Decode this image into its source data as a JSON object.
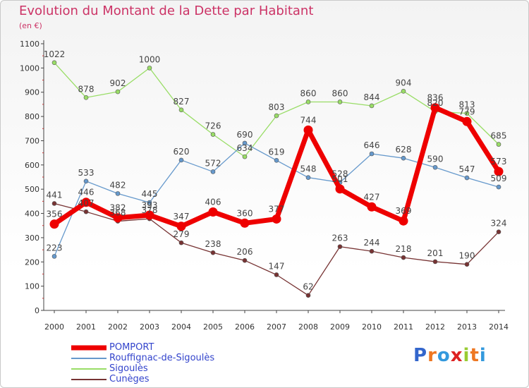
{
  "chart_data": {
    "type": "line",
    "title": "Evolution du Montant de la Dette par Habitant",
    "subtitle": "(en €)",
    "categories": [
      "2000",
      "2001",
      "2002",
      "2003",
      "2004",
      "2005",
      "2006",
      "2007",
      "2008",
      "2009",
      "2010",
      "2011",
      "2012",
      "2013",
      "2014"
    ],
    "ylim": [
      0,
      1100
    ],
    "yticks": [
      0,
      100,
      200,
      300,
      400,
      500,
      600,
      700,
      800,
      900,
      1000,
      1100
    ],
    "grid": false,
    "legend_position": "bottom-left",
    "series": [
      {
        "name": "Sigoulès",
        "color": "#99dd66",
        "values": [
          1022,
          878,
          902,
          1000,
          827,
          726,
          634,
          803,
          860,
          860,
          844,
          904,
          820,
          813,
          685
        ]
      },
      {
        "name": "Rouffignac-de-Sigoulès",
        "color": "#6699cc",
        "values": [
          223,
          533,
          482,
          445,
          620,
          572,
          690,
          619,
          548,
          528,
          646,
          628,
          590,
          547,
          509
        ]
      },
      {
        "name": "Cunèges",
        "color": "#773333",
        "values": [
          441,
          407,
          368,
          378,
          279,
          238,
          206,
          147,
          62,
          263,
          244,
          218,
          201,
          190,
          324
        ]
      },
      {
        "name": "POMPORT",
        "color": "#ee0000",
        "values": [
          356,
          446,
          382,
          393,
          347,
          406,
          360,
          377,
          744,
          501,
          427,
          369,
          836,
          779,
          573
        ]
      }
    ],
    "legend_order": [
      "POMPORT",
      "Rouffignac-de-Sigoulès",
      "Sigoulès",
      "Cunèges"
    ]
  },
  "logo": {
    "text": "Proxiti",
    "letters": [
      "P",
      "r",
      "o",
      "x",
      "i",
      "t",
      "i"
    ],
    "colors": [
      "#3366cc",
      "#ee7722",
      "#3399dd",
      "#dd2222",
      "#99cc33",
      "#ee7722",
      "#3399dd"
    ]
  }
}
